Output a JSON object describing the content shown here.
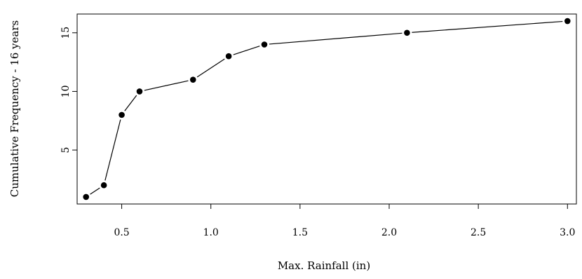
{
  "chart_data": {
    "type": "line",
    "title": "",
    "xlabel": "Max. Rainfall (in)",
    "ylabel": "Cumulative Frequency - 16 years",
    "xlim": [
      0.25,
      3.05
    ],
    "ylim": [
      0.4,
      16.6
    ],
    "x_ticks": [
      0.5,
      1.0,
      1.5,
      2.0,
      2.5,
      3.0
    ],
    "x_tick_labels": [
      "0.5",
      "1.0",
      "1.5",
      "2.0",
      "2.5",
      "3.0"
    ],
    "y_ticks": [
      5,
      10,
      15
    ],
    "y_tick_labels": [
      "5",
      "10",
      "15"
    ],
    "grid": false,
    "legend": "none",
    "series": [
      {
        "x": [
          0.3,
          0.4,
          0.5,
          0.6,
          0.9,
          1.1,
          1.3,
          2.1,
          3.0
        ],
        "y": [
          1,
          2,
          8,
          10,
          11,
          13,
          14,
          15,
          16
        ],
        "color": "#000000",
        "marker": "filled-circle"
      }
    ]
  }
}
